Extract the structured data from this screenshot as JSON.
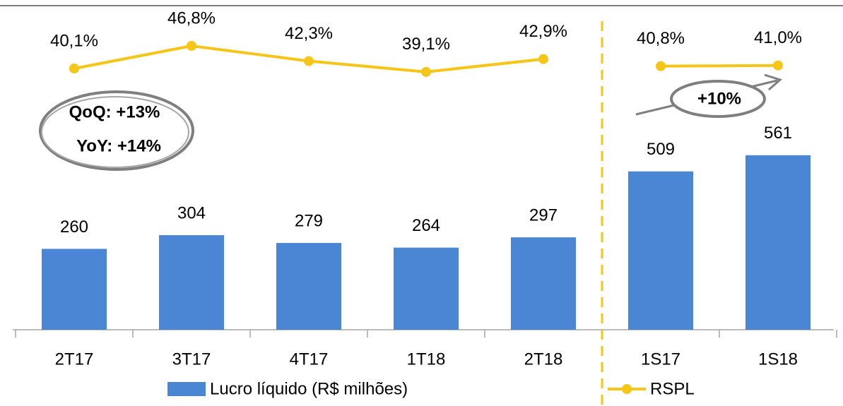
{
  "chart_data": {
    "type": "bar",
    "categories": [
      "2T17",
      "3T17",
      "4T17",
      "1T18",
      "2T18",
      "1S17",
      "1S18"
    ],
    "divider_before": 5,
    "ylim": [
      0,
      1060
    ],
    "y2lim": [
      -37.3,
      60.4
    ],
    "series": [
      {
        "name": "Lucro líquido (R$ milhões)",
        "type": "bar",
        "color": "#4a86d4",
        "values": [
          260,
          304,
          279,
          264,
          297,
          509,
          561
        ]
      },
      {
        "name": "RSPL",
        "type": "line",
        "axis": "y2",
        "color": "#f5c518",
        "values": [
          40.1,
          46.8,
          42.3,
          39.1,
          42.9,
          40.8,
          41.0
        ],
        "value_labels": [
          "40,1%",
          "46,8%",
          "42,3%",
          "39,1%",
          "42,9%",
          "40,8%",
          "41,0%"
        ]
      }
    ],
    "annotations": [
      "QoQ: +13%",
      "YoY: +14%",
      "+10%"
    ]
  }
}
